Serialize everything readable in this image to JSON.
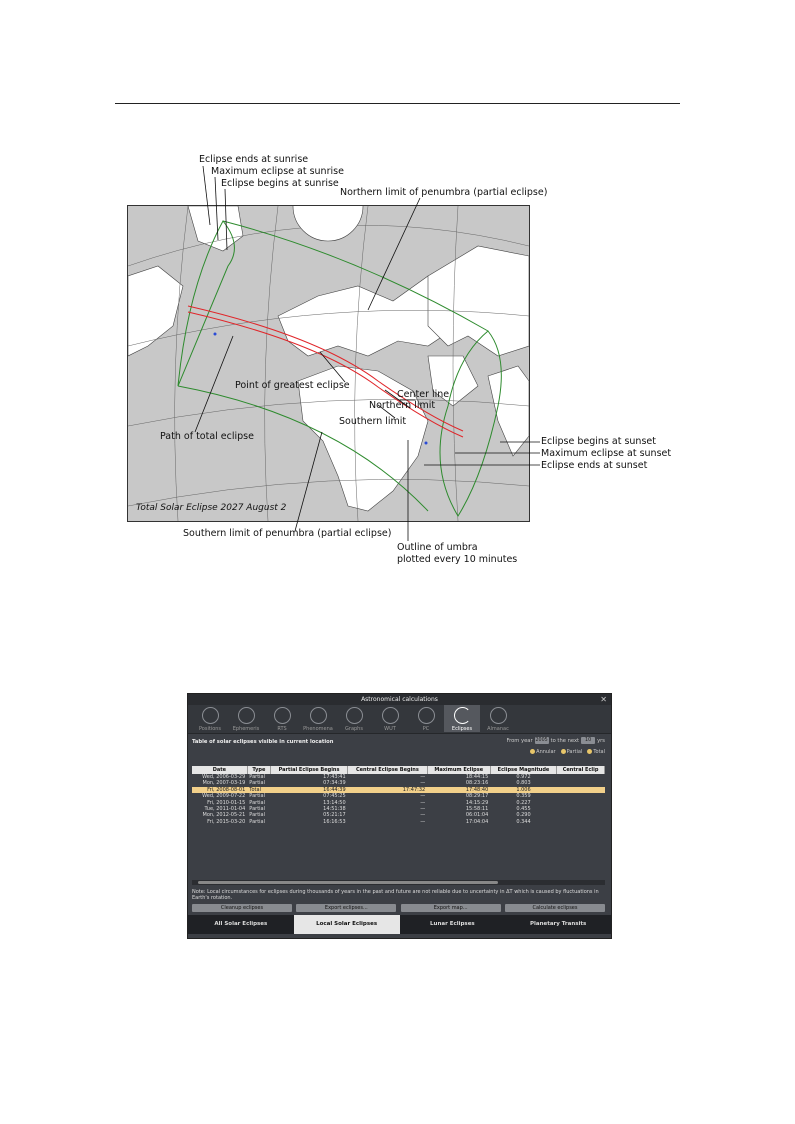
{
  "figure": {
    "annotations": {
      "eclipse_ends_sunrise": "Eclipse ends at sunrise",
      "max_eclipse_sunrise": "Maximum eclipse at sunrise",
      "eclipse_begins_sunrise": "Eclipse begins at sunrise",
      "northern_limit_penumbra": "Northern limit of penumbra (partial eclipse)",
      "point_greatest_eclipse": "Point of greatest eclipse",
      "northern_limit": "Northern limit",
      "center_line": "Center line",
      "southern_limit": "Southern limit",
      "path_total_eclipse": "Path of total eclipse",
      "eclipse_begins_sunset": "Eclipse begins at sunset",
      "max_eclipse_sunset": "Maximum eclipse at sunset",
      "eclipse_ends_sunset": "Eclipse ends at sunset",
      "southern_limit_penumbra": "Southern limit of penumbra (partial eclipse)",
      "outline_umbra_line1": "Outline of umbra",
      "outline_umbra_line2": "plotted every 10 minutes"
    },
    "map_caption": "Total Solar Eclipse 2027 August 2",
    "colors": {
      "penumbra": "#2e8b2e",
      "umbra_path": "#e0262a",
      "land": "#ffffff",
      "sea": "#c8c8c8"
    }
  },
  "app": {
    "window_title": "Astronomical calculations",
    "toolbar": [
      "Positions",
      "Ephemeris",
      "RTS",
      "Phenomena",
      "Graphs",
      "WUT",
      "PC",
      "Eclipses",
      "Almanac"
    ],
    "active_tool": "Eclipses",
    "panel_title": "Table of solar eclipses visible in current location",
    "range": {
      "from_label": "From year",
      "from_value": "2005",
      "to_label": "to the next",
      "to_value": "10",
      "unit": "yrs"
    },
    "legend": [
      "Annular",
      "Partial",
      "Total"
    ],
    "table": {
      "headers": [
        "Date",
        "Type",
        "Partial Eclipse Begins",
        "Central Eclipse Begins",
        "Maximum Eclipse",
        "Eclipse Magnitude",
        "Central Eclip"
      ],
      "rows": [
        [
          "Wed, 2006-03-29",
          "Partial",
          "17:43:41",
          "—",
          "18:44:15",
          "0.972",
          ""
        ],
        [
          "Mon, 2007-03-19",
          "Partial",
          "07:34:39",
          "—",
          "08:23:16",
          "0.803",
          ""
        ],
        [
          "Fri, 2008-08-01",
          "Total",
          "16:44:39",
          "17:47:32",
          "17:48:40",
          "1.006",
          ""
        ],
        [
          "Wed, 2009-07-22",
          "Partial",
          "07:45:25",
          "—",
          "08:29:17",
          "0.359",
          ""
        ],
        [
          "Fri, 2010-01-15",
          "Partial",
          "13:14:50",
          "—",
          "14:15:29",
          "0.227",
          ""
        ],
        [
          "Tue, 2011-01-04",
          "Partial",
          "14:51:38",
          "—",
          "15:58:11",
          "0.455",
          ""
        ],
        [
          "Mon, 2012-05-21",
          "Partial",
          "05:21:17",
          "—",
          "06:01:04",
          "0.290",
          ""
        ],
        [
          "Fri, 2015-03-20",
          "Partial",
          "16:16:53",
          "—",
          "17:04:04",
          "0.344",
          ""
        ]
      ],
      "selected_row": 2
    },
    "note": "Note: Local circumstances for eclipses during thousands of years in the past and future are not reliable due to uncertainty in ΔT which is caused by fluctuations in Earth's rotation.",
    "buttons": [
      "Cleanup eclipses",
      "Export eclipses...",
      "Export map...",
      "Calculate eclipses"
    ],
    "bottom_tabs": [
      "All Solar Eclipses",
      "Local Solar Eclipses",
      "Lunar Eclipses",
      "Planetary Transits"
    ],
    "active_bottom_tab": "Local Solar Eclipses"
  }
}
